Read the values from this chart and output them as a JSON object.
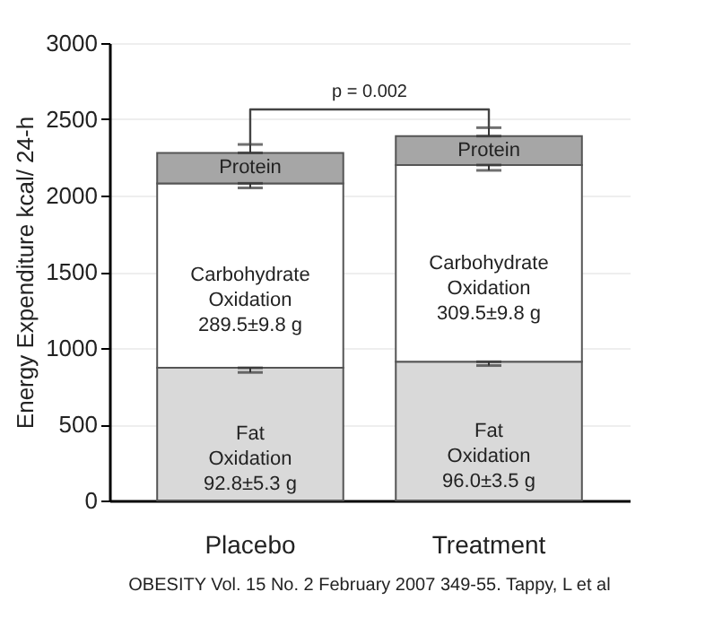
{
  "chart_data": {
    "type": "bar",
    "stacked": true,
    "categories": [
      "Placebo",
      "Treatment"
    ],
    "ylabel": "Energy Expenditure kcal/ 24-h",
    "ylim": [
      0,
      3000
    ],
    "yticks": [
      0,
      500,
      1000,
      1500,
      2000,
      2500,
      3000
    ],
    "grid": "y",
    "legend": false,
    "series": [
      {
        "name": "Fat Oxidation",
        "color": "#d9d9d9",
        "values": [
          870,
          910
        ],
        "errors": [
          [
            840,
            870
          ],
          [
            885,
            910
          ]
        ]
      },
      {
        "name": "Carbohydrate Oxidation",
        "color": "#ffffff",
        "values": [
          1210,
          1290
        ],
        "errors": [
          [
            2050,
            2080
          ],
          [
            2165,
            2200
          ]
        ]
      },
      {
        "name": "Protein",
        "color": "#a6a6a6",
        "values": [
          200,
          190
        ],
        "errors": [
          [
            2280,
            2335
          ],
          [
            2390,
            2445
          ]
        ]
      }
    ],
    "annotations": [
      "p = 0.002",
      "92.8±5.3 g",
      "96.0±3.5 g",
      "289.5±9.8 g",
      "309.5±9.8 g",
      "OBESITY Vol. 15 No. 2 February 2007 349-55. Tappy, L et al"
    ]
  }
}
